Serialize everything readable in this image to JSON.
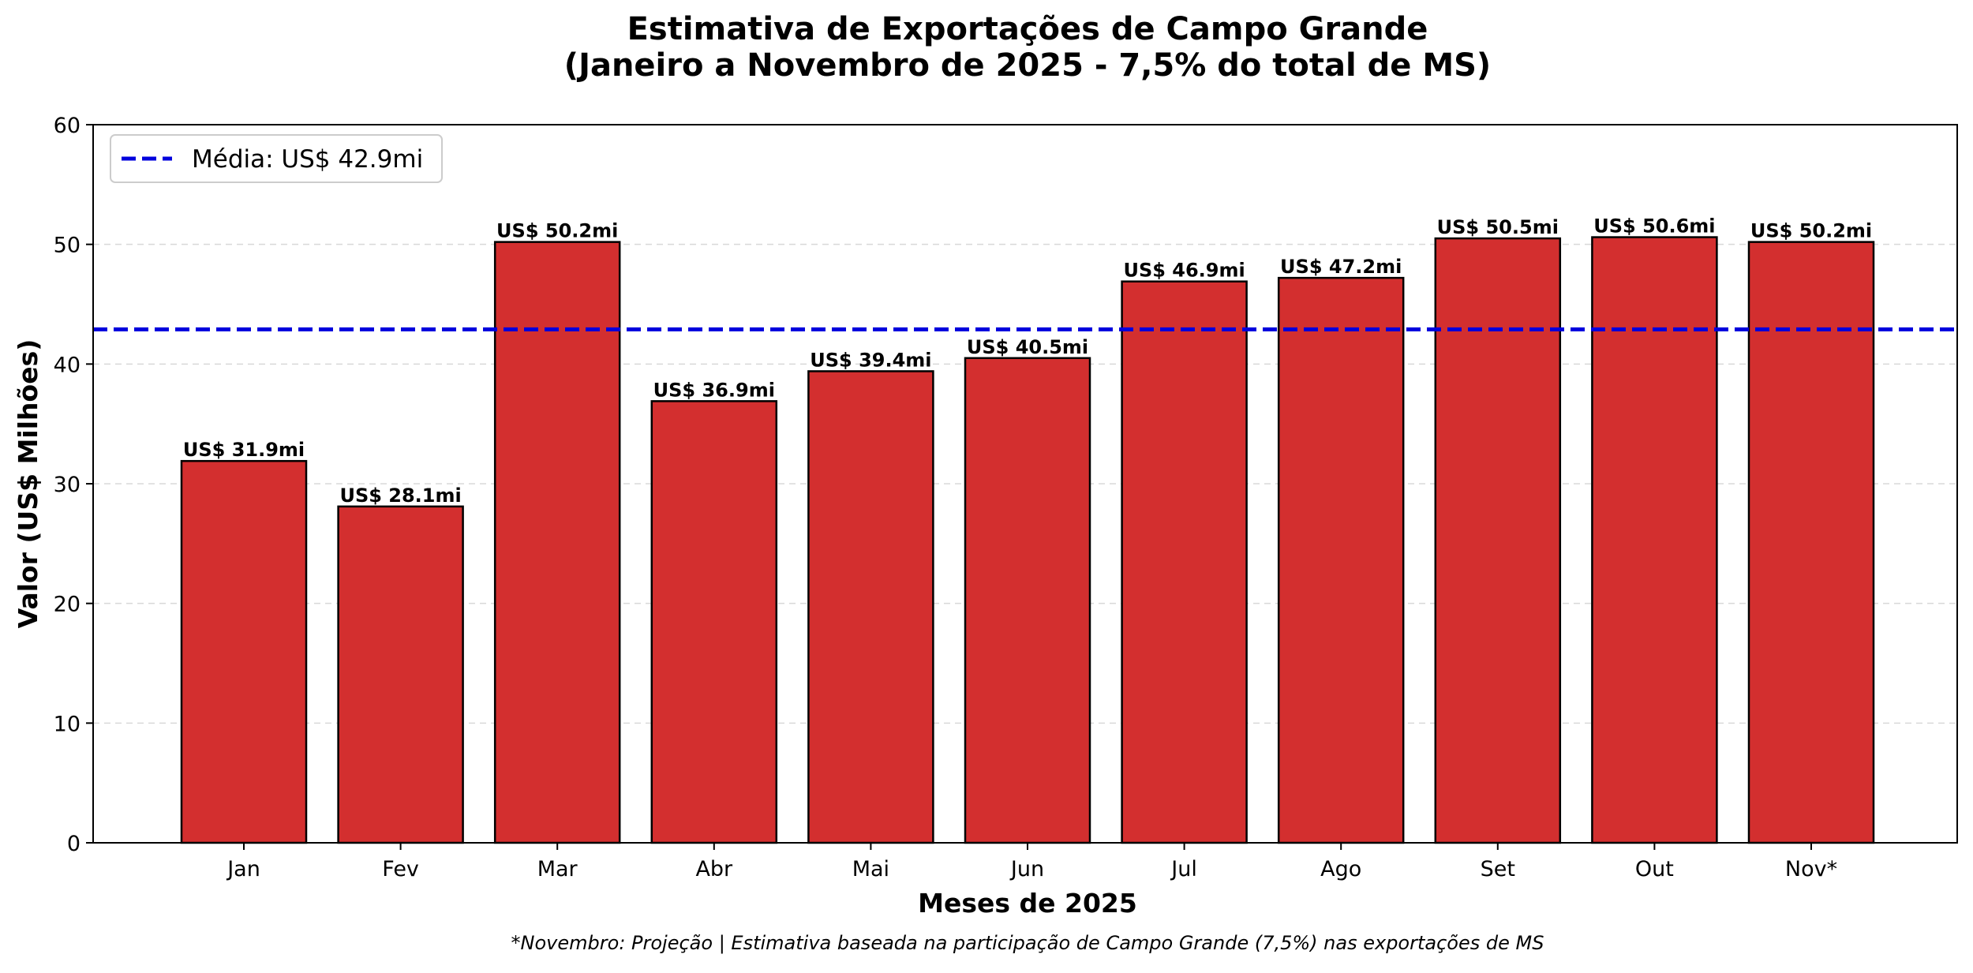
{
  "chart_data": {
    "type": "bar",
    "title_line1": "Estimativa de Exportações de Campo Grande",
    "title_line2": "(Janeiro a Novembro de 2025 - 7,5% do total de MS)",
    "xlabel": "Meses de 2025",
    "ylabel": "Valor (US$ Milhões)",
    "categories": [
      "Jan",
      "Fev",
      "Mar",
      "Abr",
      "Mai",
      "Jun",
      "Jul",
      "Ago",
      "Set",
      "Out",
      "Nov*"
    ],
    "values": [
      31.9,
      28.1,
      50.2,
      36.9,
      39.4,
      40.5,
      46.9,
      47.2,
      50.5,
      50.6,
      50.2
    ],
    "data_labels": [
      "US$ 31.9mi",
      "US$ 28.1mi",
      "US$ 50.2mi",
      "US$ 36.9mi",
      "US$ 39.4mi",
      "US$ 40.5mi",
      "US$ 46.9mi",
      "US$ 47.2mi",
      "US$ 50.5mi",
      "US$ 50.6mi",
      "US$ 50.2mi"
    ],
    "ylim": [
      0,
      60
    ],
    "yticks": [
      0,
      10,
      20,
      30,
      40,
      50,
      60
    ],
    "grid": "horizontal dashed",
    "bar_color": "#d32f2f",
    "bar_edge_color": "#000000",
    "average": {
      "value": 42.9,
      "label": "Média: US$ 42.9mi",
      "color": "#0000dd",
      "style": "dashed"
    },
    "legend_position": "top-left",
    "footnote": "*Novembro: Projeção | Estimativa baseada na participação de Campo Grande (7,5%) nas exportações de MS"
  }
}
